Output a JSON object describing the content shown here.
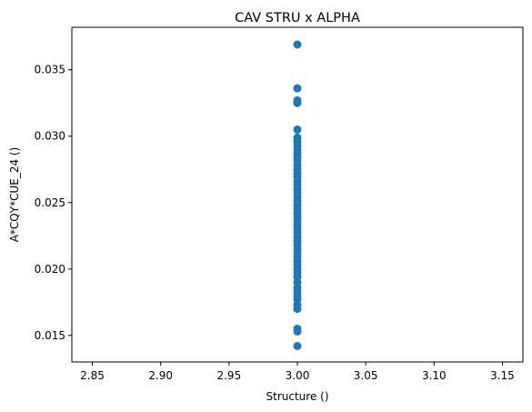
{
  "chart_data": {
    "type": "scatter",
    "title": "CAV STRU x ALPHA",
    "xlabel": "Structure ()",
    "ylabel": "A*CQY*CUE_24 ()",
    "xlim": [
      2.835,
      3.165
    ],
    "ylim": [
      0.013,
      0.0382
    ],
    "x_ticks": [
      2.85,
      2.9,
      2.95,
      3.0,
      3.05,
      3.1,
      3.15
    ],
    "x_tick_labels": [
      "2.85",
      "2.90",
      "2.95",
      "3.00",
      "3.05",
      "3.10",
      "3.15"
    ],
    "y_ticks": [
      0.015,
      0.02,
      0.025,
      0.03,
      0.035
    ],
    "y_tick_labels": [
      "0.015",
      "0.020",
      "0.025",
      "0.030",
      "0.035"
    ],
    "grid": false,
    "marker_color": "#1f77b4",
    "points": [
      [
        3.0,
        0.0369
      ],
      [
        3.0,
        0.0336
      ],
      [
        3.0,
        0.0327
      ],
      [
        3.0,
        0.0325
      ],
      [
        3.0,
        0.0305
      ],
      [
        3.0,
        0.0299
      ],
      [
        3.0,
        0.0296
      ],
      [
        3.0,
        0.0293
      ],
      [
        3.0,
        0.029
      ],
      [
        3.0,
        0.0287
      ],
      [
        3.0,
        0.0284
      ],
      [
        3.0,
        0.0281
      ],
      [
        3.0,
        0.0278
      ],
      [
        3.0,
        0.0275
      ],
      [
        3.0,
        0.0272
      ],
      [
        3.0,
        0.0269
      ],
      [
        3.0,
        0.0266
      ],
      [
        3.0,
        0.0263
      ],
      [
        3.0,
        0.026
      ],
      [
        3.0,
        0.0257
      ],
      [
        3.0,
        0.0254
      ],
      [
        3.0,
        0.0251
      ],
      [
        3.0,
        0.0248
      ],
      [
        3.0,
        0.0245
      ],
      [
        3.0,
        0.0242
      ],
      [
        3.0,
        0.0239
      ],
      [
        3.0,
        0.0236
      ],
      [
        3.0,
        0.0233
      ],
      [
        3.0,
        0.023
      ],
      [
        3.0,
        0.0227
      ],
      [
        3.0,
        0.0224
      ],
      [
        3.0,
        0.0221
      ],
      [
        3.0,
        0.0218
      ],
      [
        3.0,
        0.0215
      ],
      [
        3.0,
        0.0212
      ],
      [
        3.0,
        0.0209
      ],
      [
        3.0,
        0.0206
      ],
      [
        3.0,
        0.0203
      ],
      [
        3.0,
        0.02
      ],
      [
        3.0,
        0.0197
      ],
      [
        3.0,
        0.0194
      ],
      [
        3.0,
        0.019
      ],
      [
        3.0,
        0.0186
      ],
      [
        3.0,
        0.0183
      ],
      [
        3.0,
        0.018
      ],
      [
        3.0,
        0.0177
      ],
      [
        3.0,
        0.0173
      ],
      [
        3.0,
        0.017
      ],
      [
        3.0,
        0.0155
      ],
      [
        3.0,
        0.0153
      ],
      [
        3.0,
        0.0142
      ]
    ]
  }
}
